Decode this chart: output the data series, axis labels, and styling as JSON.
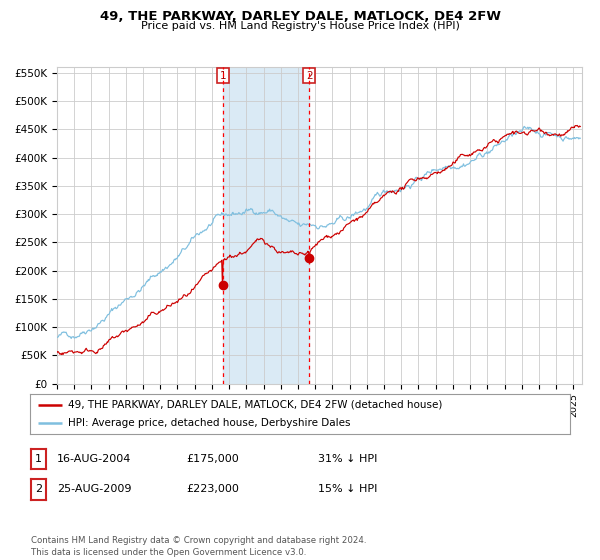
{
  "title": "49, THE PARKWAY, DARLEY DALE, MATLOCK, DE4 2FW",
  "subtitle": "Price paid vs. HM Land Registry's House Price Index (HPI)",
  "hpi_color": "#7fbfdf",
  "price_color": "#cc0000",
  "purchase1_date": 2004.625,
  "purchase1_price": 175000,
  "purchase2_date": 2009.646,
  "purchase2_price": 223000,
  "shade_start": 2004.625,
  "shade_end": 2009.646,
  "ylim": [
    0,
    560000
  ],
  "xlim_start": 1995.0,
  "xlim_end": 2025.5,
  "yticks": [
    0,
    50000,
    100000,
    150000,
    200000,
    250000,
    300000,
    350000,
    400000,
    450000,
    500000,
    550000
  ],
  "ytick_labels": [
    "£0",
    "£50K",
    "£100K",
    "£150K",
    "£200K",
    "£250K",
    "£300K",
    "£350K",
    "£400K",
    "£450K",
    "£500K",
    "£550K"
  ],
  "xtick_years": [
    1995,
    1996,
    1997,
    1998,
    1999,
    2000,
    2001,
    2002,
    2003,
    2004,
    2005,
    2006,
    2007,
    2008,
    2009,
    2010,
    2011,
    2012,
    2013,
    2014,
    2015,
    2016,
    2017,
    2018,
    2019,
    2020,
    2021,
    2022,
    2023,
    2024,
    2025
  ],
  "legend1_label": "49, THE PARKWAY, DARLEY DALE, MATLOCK, DE4 2FW (detached house)",
  "legend2_label": "HPI: Average price, detached house, Derbyshire Dales",
  "table_rows": [
    [
      "1",
      "16-AUG-2004",
      "£175,000",
      "31% ↓ HPI"
    ],
    [
      "2",
      "25-AUG-2009",
      "£223,000",
      "15% ↓ HPI"
    ]
  ],
  "footnote": "Contains HM Land Registry data © Crown copyright and database right 2024.\nThis data is licensed under the Open Government Licence v3.0.",
  "bg_color": "#ffffff",
  "grid_color": "#cccccc",
  "shade_color": "#daeaf5"
}
